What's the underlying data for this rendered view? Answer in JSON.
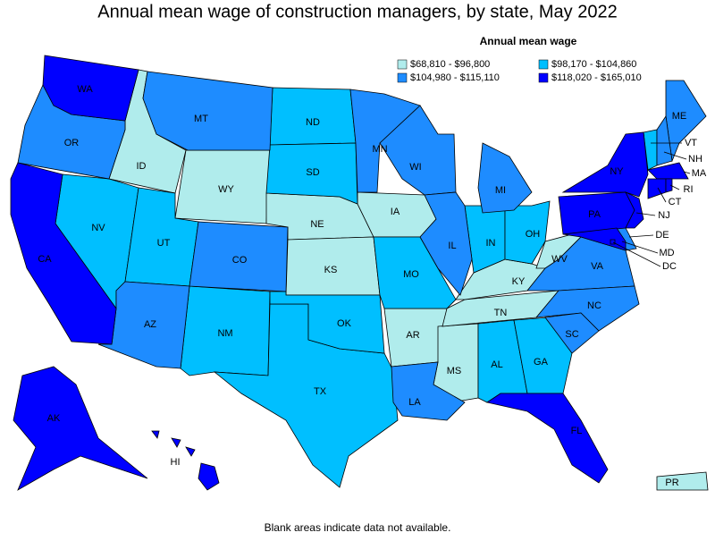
{
  "title": "Annual mean wage of construction managers, by state, May 2022",
  "legend": {
    "title": "Annual mean wage",
    "items": [
      {
        "label": "$68,810 - $96,800",
        "color": "#b0ecec",
        "states": [
          "ID",
          "WY",
          "NE",
          "IA",
          "KS",
          "AR",
          "MS",
          "TN",
          "KY",
          "WV",
          "PR"
        ]
      },
      {
        "label": "$98,170 - $104,860",
        "color": "#00bfff",
        "states": [
          "ND",
          "SD",
          "NV",
          "UT",
          "NM",
          "TX",
          "OK",
          "MO",
          "IN",
          "OH",
          "AL",
          "GA",
          "VT"
        ]
      },
      {
        "label": "$104,980 - $115,110",
        "color": "#1e8cff",
        "states": [
          "OR",
          "MT",
          "CO",
          "AZ",
          "MN",
          "WI",
          "IL",
          "MI",
          "LA",
          "VA",
          "NC",
          "SC",
          "ME",
          "NH",
          "DE"
        ]
      },
      {
        "label": "$118,020 - $165,010",
        "color": "#0000ff",
        "states": [
          "WA",
          "CA",
          "AK",
          "HI",
          "NY",
          "PA",
          "NJ",
          "MA",
          "CT",
          "RI",
          "MD",
          "DC",
          "FL"
        ]
      }
    ]
  },
  "footnote": "Blank areas indicate data not available."
}
